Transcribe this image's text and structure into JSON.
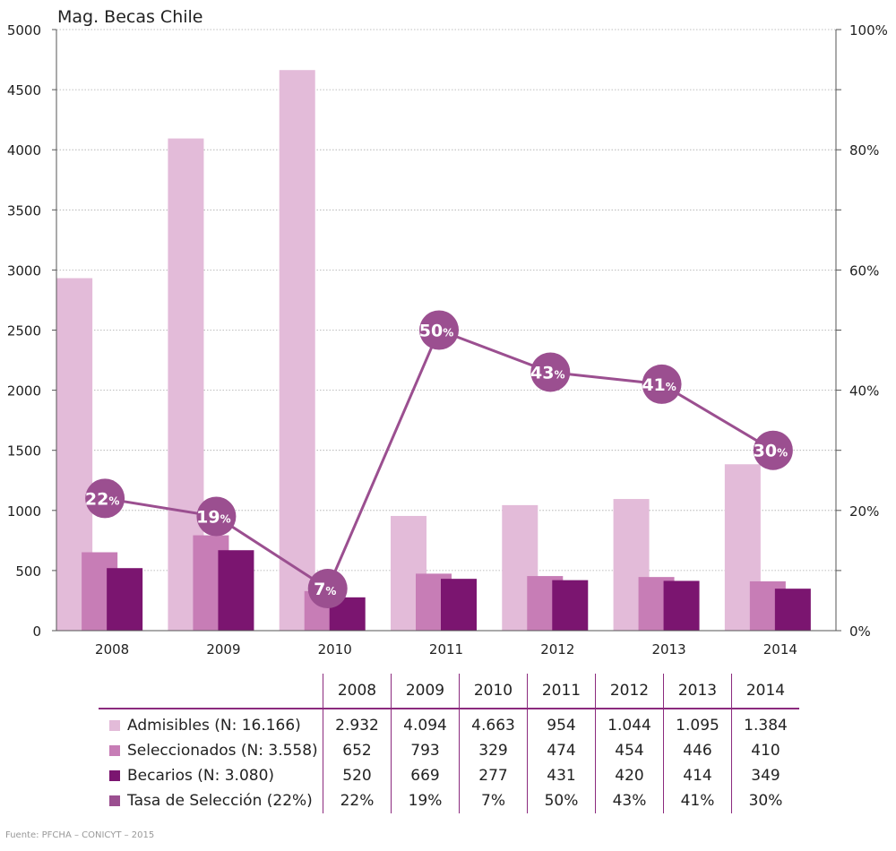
{
  "chart_data": {
    "type": "bar",
    "title": "Mag. Becas Chile",
    "categories": [
      "2008",
      "2009",
      "2010",
      "2011",
      "2012",
      "2013",
      "2014"
    ],
    "series": [
      {
        "name": "Admisibles (N: 16.166)",
        "values": [
          2932,
          4094,
          4663,
          954,
          1044,
          1095,
          1384
        ],
        "color": "#e3bbd9",
        "axis": "left"
      },
      {
        "name": "Seleccionados (N: 3.558)",
        "values": [
          652,
          793,
          329,
          474,
          454,
          446,
          410
        ],
        "color": "#c77db6",
        "axis": "left"
      },
      {
        "name": "Becarios (N: 3.080)",
        "values": [
          520,
          669,
          277,
          431,
          420,
          414,
          349
        ],
        "color": "#7b1570",
        "axis": "left"
      },
      {
        "name": "Tasa de Selección (22%)",
        "type": "line",
        "values": [
          22,
          19,
          7,
          50,
          43,
          41,
          30
        ],
        "color": "#9b4f90",
        "axis": "right"
      }
    ],
    "ylim": [
      0,
      5000
    ],
    "yticks": [
      "0",
      "500",
      "1000",
      "1500",
      "2000",
      "2500",
      "3000",
      "3500",
      "4000",
      "4500",
      "5000"
    ],
    "y2lim": [
      0,
      100
    ],
    "y2ticks": [
      "0%",
      "20%",
      "40%",
      "60%",
      "80%",
      "100%"
    ],
    "grid": "horizontal dotted"
  },
  "table": {
    "header": [
      "2008",
      "2009",
      "2010",
      "2011",
      "2012",
      "2013",
      "2014"
    ],
    "rows": [
      {
        "label": "Admisibles (N: 16.166)",
        "color": "#e3bbd9",
        "cells": [
          "2.932",
          "4.094",
          "4.663",
          "954",
          "1.044",
          "1.095",
          "1.384"
        ]
      },
      {
        "label": "Seleccionados (N: 3.558)",
        "color": "#c77db6",
        "cells": [
          "652",
          "793",
          "329",
          "474",
          "454",
          "446",
          "410"
        ]
      },
      {
        "label": "Becarios (N: 3.080)",
        "color": "#7b1570",
        "cells": [
          "520",
          "669",
          "277",
          "431",
          "420",
          "414",
          "349"
        ]
      },
      {
        "label": "Tasa de Selección (22%)",
        "color": "#9b4f90",
        "cells": [
          "22%",
          "19%",
          "7%",
          "50%",
          "43%",
          "41%",
          "30%"
        ]
      }
    ]
  },
  "source": "Fuente: PFCHA – CONICYT – 2015"
}
